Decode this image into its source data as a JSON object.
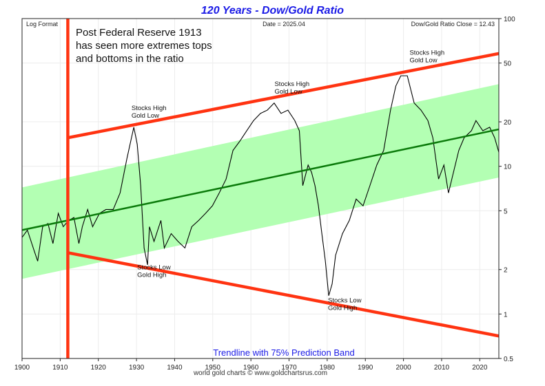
{
  "chart_data": {
    "type": "line",
    "title": "120 Years - Dow/Gold Ratio",
    "corner_left": "Log Format",
    "corner_center": "Date = 2025.04",
    "corner_right": "Dow/Gold Ratio Close = 12.43",
    "note": [
      "Post Federal Reserve 1913",
      "has seen more extremes tops",
      "and bottoms in the ratio"
    ],
    "subtitle": "Trendline with 75% Prediction Band",
    "footer": "world gold charts © www.goldchartsrus.com",
    "scale": "log",
    "grid": true,
    "xlim": [
      1900,
      2025
    ],
    "ylim": [
      0.5,
      100
    ],
    "x_ticks": [
      "1900",
      "1910",
      "1920",
      "1930",
      "1940",
      "1950",
      "1960",
      "1970",
      "1980",
      "1990",
      "2000",
      "2010",
      "2020"
    ],
    "y_ticks": [
      "100",
      "50",
      "20",
      "10",
      "5",
      "2",
      "1",
      "0.5"
    ],
    "colors": {
      "series": "#000000",
      "trend": "#0a7a0a",
      "band": "#b3ffb3",
      "channel": "#ff3311",
      "title": "#1a1ae6"
    },
    "series": [
      {
        "x": [
          1900,
          1901.4,
          1903.2,
          1904.1,
          1905.4,
          1906.8,
          1908.1,
          1909.5,
          1910.8,
          1912.2,
          1913.6,
          1914.9,
          1915.8,
          1917.2,
          1918.5,
          1920.3,
          1922,
          1923.9,
          1925.7,
          1927.5,
          1929.3,
          1930.2,
          1931.1,
          1932,
          1932.9,
          1933.4,
          1934.6,
          1936.4,
          1937.3,
          1939.1,
          1940.9,
          1942.7,
          1944.5,
          1946.3,
          1948.1,
          1949.9,
          1951.7,
          1953.5,
          1955.3,
          1957.1,
          1958.9,
          1960.7,
          1962.5,
          1964.3,
          1966.1,
          1967.9,
          1969.7,
          1971.5,
          1972.7,
          1973.6,
          1975,
          1975.9,
          1976.8,
          1977.7,
          1978.6,
          1979.5,
          1980.4,
          1981.3,
          1982.2,
          1984,
          1985.8,
          1987.6,
          1989.4,
          1991.2,
          1993,
          1994.8,
          1996.6,
          1998,
          1999.3,
          2001,
          2002.8,
          2004.6,
          2006.4,
          2007.7,
          2009.2,
          2010.6,
          2011.8,
          2013.1,
          2014.5,
          2015.9,
          2017.8,
          2019,
          2020.8,
          2022.6,
          2023.9,
          2025
        ],
        "y": [
          3.3,
          3.7,
          2.67,
          2.28,
          3.9,
          4.1,
          3.0,
          4.8,
          3.9,
          4.3,
          4.5,
          3.0,
          3.9,
          5.1,
          3.9,
          4.8,
          5.1,
          5.1,
          6.6,
          11.3,
          18.4,
          14.1,
          7.4,
          2.8,
          2.15,
          3.9,
          3.1,
          4.3,
          2.8,
          3.5,
          3.1,
          2.8,
          3.9,
          4.3,
          4.8,
          5.4,
          6.6,
          8.2,
          12.8,
          14.8,
          17.4,
          20.4,
          22.8,
          24.0,
          26.8,
          22.8,
          24,
          20.4,
          17.4,
          7.4,
          10.2,
          9.1,
          7.4,
          5.4,
          3.5,
          2.3,
          1.33,
          1.6,
          2.5,
          3.5,
          4.3,
          6.0,
          5.4,
          7.4,
          10.2,
          12.8,
          24,
          35,
          41,
          41,
          26.8,
          24,
          20.4,
          15.6,
          8.2,
          10.2,
          6.6,
          9.1,
          12.8,
          15.6,
          17.4,
          20.4,
          17.4,
          18.4,
          15.6,
          12.43
        ]
      }
    ],
    "trendline": {
      "x": [
        1900,
        2025
      ],
      "y": [
        3.7,
        17.8
      ]
    },
    "band_upper": {
      "x": [
        1900,
        2025
      ],
      "y": [
        7.2,
        36
      ]
    },
    "band_lower": {
      "x": [
        1900,
        2025
      ],
      "y": [
        1.73,
        8.4
      ]
    },
    "channel_upper": {
      "x": [
        1912,
        2025
      ],
      "y": [
        15.6,
        58
      ]
    },
    "channel_lower": {
      "x": [
        1912,
        2025
      ],
      "y": [
        2.6,
        0.71
      ]
    },
    "vertical_line_year": 1912,
    "annotations": [
      {
        "lines": [
          "Stocks High",
          "Gold Low"
        ],
        "x": 1928.7,
        "y": 24
      },
      {
        "lines": [
          "Stocks High",
          "Gold Low"
        ],
        "x": 1966.2,
        "y": 35
      },
      {
        "lines": [
          "Stocks High",
          "Gold Low"
        ],
        "x": 2001.6,
        "y": 57
      },
      {
        "lines": [
          "Stocks Low",
          "Gold High"
        ],
        "x": 1930.2,
        "y": 2.0
      },
      {
        "lines": [
          "Stocks Low",
          "Gold High"
        ],
        "x": 1980.2,
        "y": 1.2
      }
    ]
  }
}
